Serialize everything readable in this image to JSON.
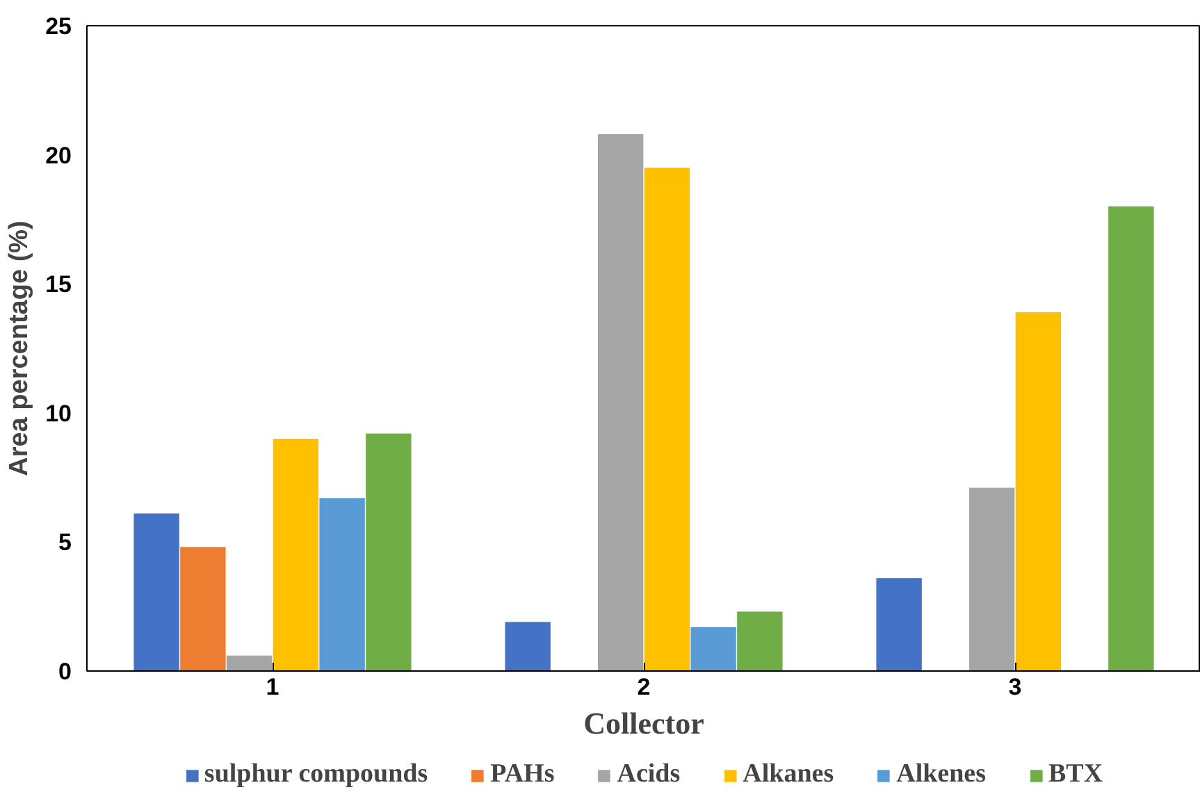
{
  "chart_data": {
    "type": "bar",
    "xlabel": "Collector",
    "ylabel": "Area percentage (%)",
    "categories": [
      "1",
      "2",
      "3"
    ],
    "series": [
      {
        "name": "sulphur compounds",
        "color": "#4472c4",
        "values": [
          6.1,
          1.9,
          3.6
        ]
      },
      {
        "name": "PAHs",
        "color": "#ed7d31",
        "values": [
          4.8,
          0,
          0
        ]
      },
      {
        "name": "Acids",
        "color": "#a5a5a5",
        "values": [
          0.6,
          20.8,
          7.1
        ]
      },
      {
        "name": "Alkanes",
        "color": "#ffc000",
        "values": [
          9.0,
          19.5,
          13.9
        ]
      },
      {
        "name": "Alkenes",
        "color": "#5b9bd5",
        "values": [
          6.7,
          1.7,
          0
        ]
      },
      {
        "name": "BTX",
        "color": "#70ad47",
        "values": [
          9.2,
          2.3,
          18.0
        ]
      }
    ],
    "ylim": [
      0,
      25
    ],
    "yticks": [
      0,
      5,
      10,
      15,
      20,
      25
    ],
    "legend": "bottom",
    "grid": false
  }
}
